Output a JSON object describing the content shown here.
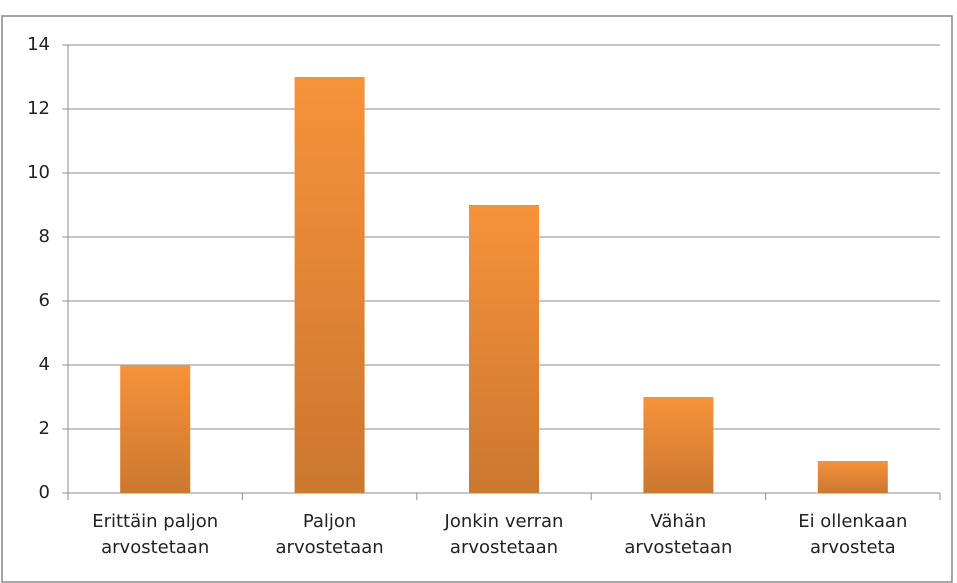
{
  "chart_data": {
    "type": "bar",
    "categories": [
      "Erittäin paljon arvostetaan",
      "Paljon arvostetaan",
      "Jonkin verran arvostetaan",
      "Vähän arvostetaan",
      "Ei ollenkaan arvosteta"
    ],
    "values": [
      4,
      13,
      9,
      3,
      1
    ],
    "color": "#f7923a",
    "ylim": [
      0,
      14
    ],
    "yticks": [
      0,
      2,
      4,
      6,
      8,
      10,
      12,
      14
    ],
    "grid": true
  }
}
